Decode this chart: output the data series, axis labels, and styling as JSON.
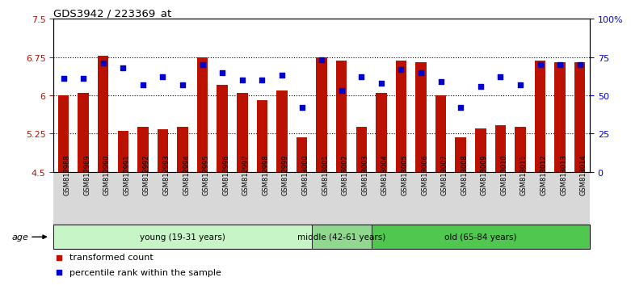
{
  "title": "GDS3942 / 223369_at",
  "samples": [
    "GSM812988",
    "GSM812989",
    "GSM812990",
    "GSM812991",
    "GSM812992",
    "GSM812993",
    "GSM812994",
    "GSM812995",
    "GSM812996",
    "GSM812997",
    "GSM812998",
    "GSM812999",
    "GSM813000",
    "GSM813001",
    "GSM813002",
    "GSM813003",
    "GSM813004",
    "GSM813005",
    "GSM813006",
    "GSM813007",
    "GSM813008",
    "GSM813009",
    "GSM813010",
    "GSM813011",
    "GSM813012",
    "GSM813013",
    "GSM813014"
  ],
  "bar_values": [
    6.0,
    6.05,
    6.78,
    5.3,
    5.38,
    5.33,
    5.38,
    6.75,
    6.2,
    6.05,
    5.9,
    6.1,
    5.18,
    6.75,
    6.68,
    5.38,
    6.05,
    6.68,
    6.65,
    6.0,
    5.18,
    5.35,
    5.42,
    5.38,
    6.68,
    6.65,
    6.65
  ],
  "percentile_values": [
    61,
    61,
    71,
    68,
    57,
    62,
    57,
    70,
    65,
    60,
    60,
    63,
    42,
    73,
    53,
    62,
    58,
    67,
    65,
    59,
    42,
    56,
    62,
    57,
    70,
    70,
    70
  ],
  "groups": [
    {
      "label": "young (19-31 years)",
      "start": 0,
      "end": 13,
      "color": "#c8f5c8"
    },
    {
      "label": "middle (42-61 years)",
      "start": 13,
      "end": 16,
      "color": "#90d890"
    },
    {
      "label": "old (65-84 years)",
      "start": 16,
      "end": 27,
      "color": "#50c850"
    }
  ],
  "bar_color": "#bb1100",
  "dot_color": "#0000cc",
  "ylim_left": [
    4.5,
    7.5
  ],
  "ylim_right": [
    0,
    100
  ],
  "yticks_left": [
    4.5,
    5.25,
    6.0,
    6.75,
    7.5
  ],
  "ytick_labels_left": [
    "4.5",
    "5.25",
    "6",
    "6.75",
    "7.5"
  ],
  "yticks_right": [
    0,
    25,
    50,
    75,
    100
  ],
  "ytick_labels_right": [
    "0",
    "25",
    "50",
    "75",
    "100%"
  ],
  "hlines": [
    5.25,
    6.0,
    6.75
  ],
  "legend_entries": [
    {
      "color": "#bb1100",
      "label": "transformed count"
    },
    {
      "color": "#0000cc",
      "label": "percentile rank within the sample"
    }
  ],
  "age_label": "age"
}
